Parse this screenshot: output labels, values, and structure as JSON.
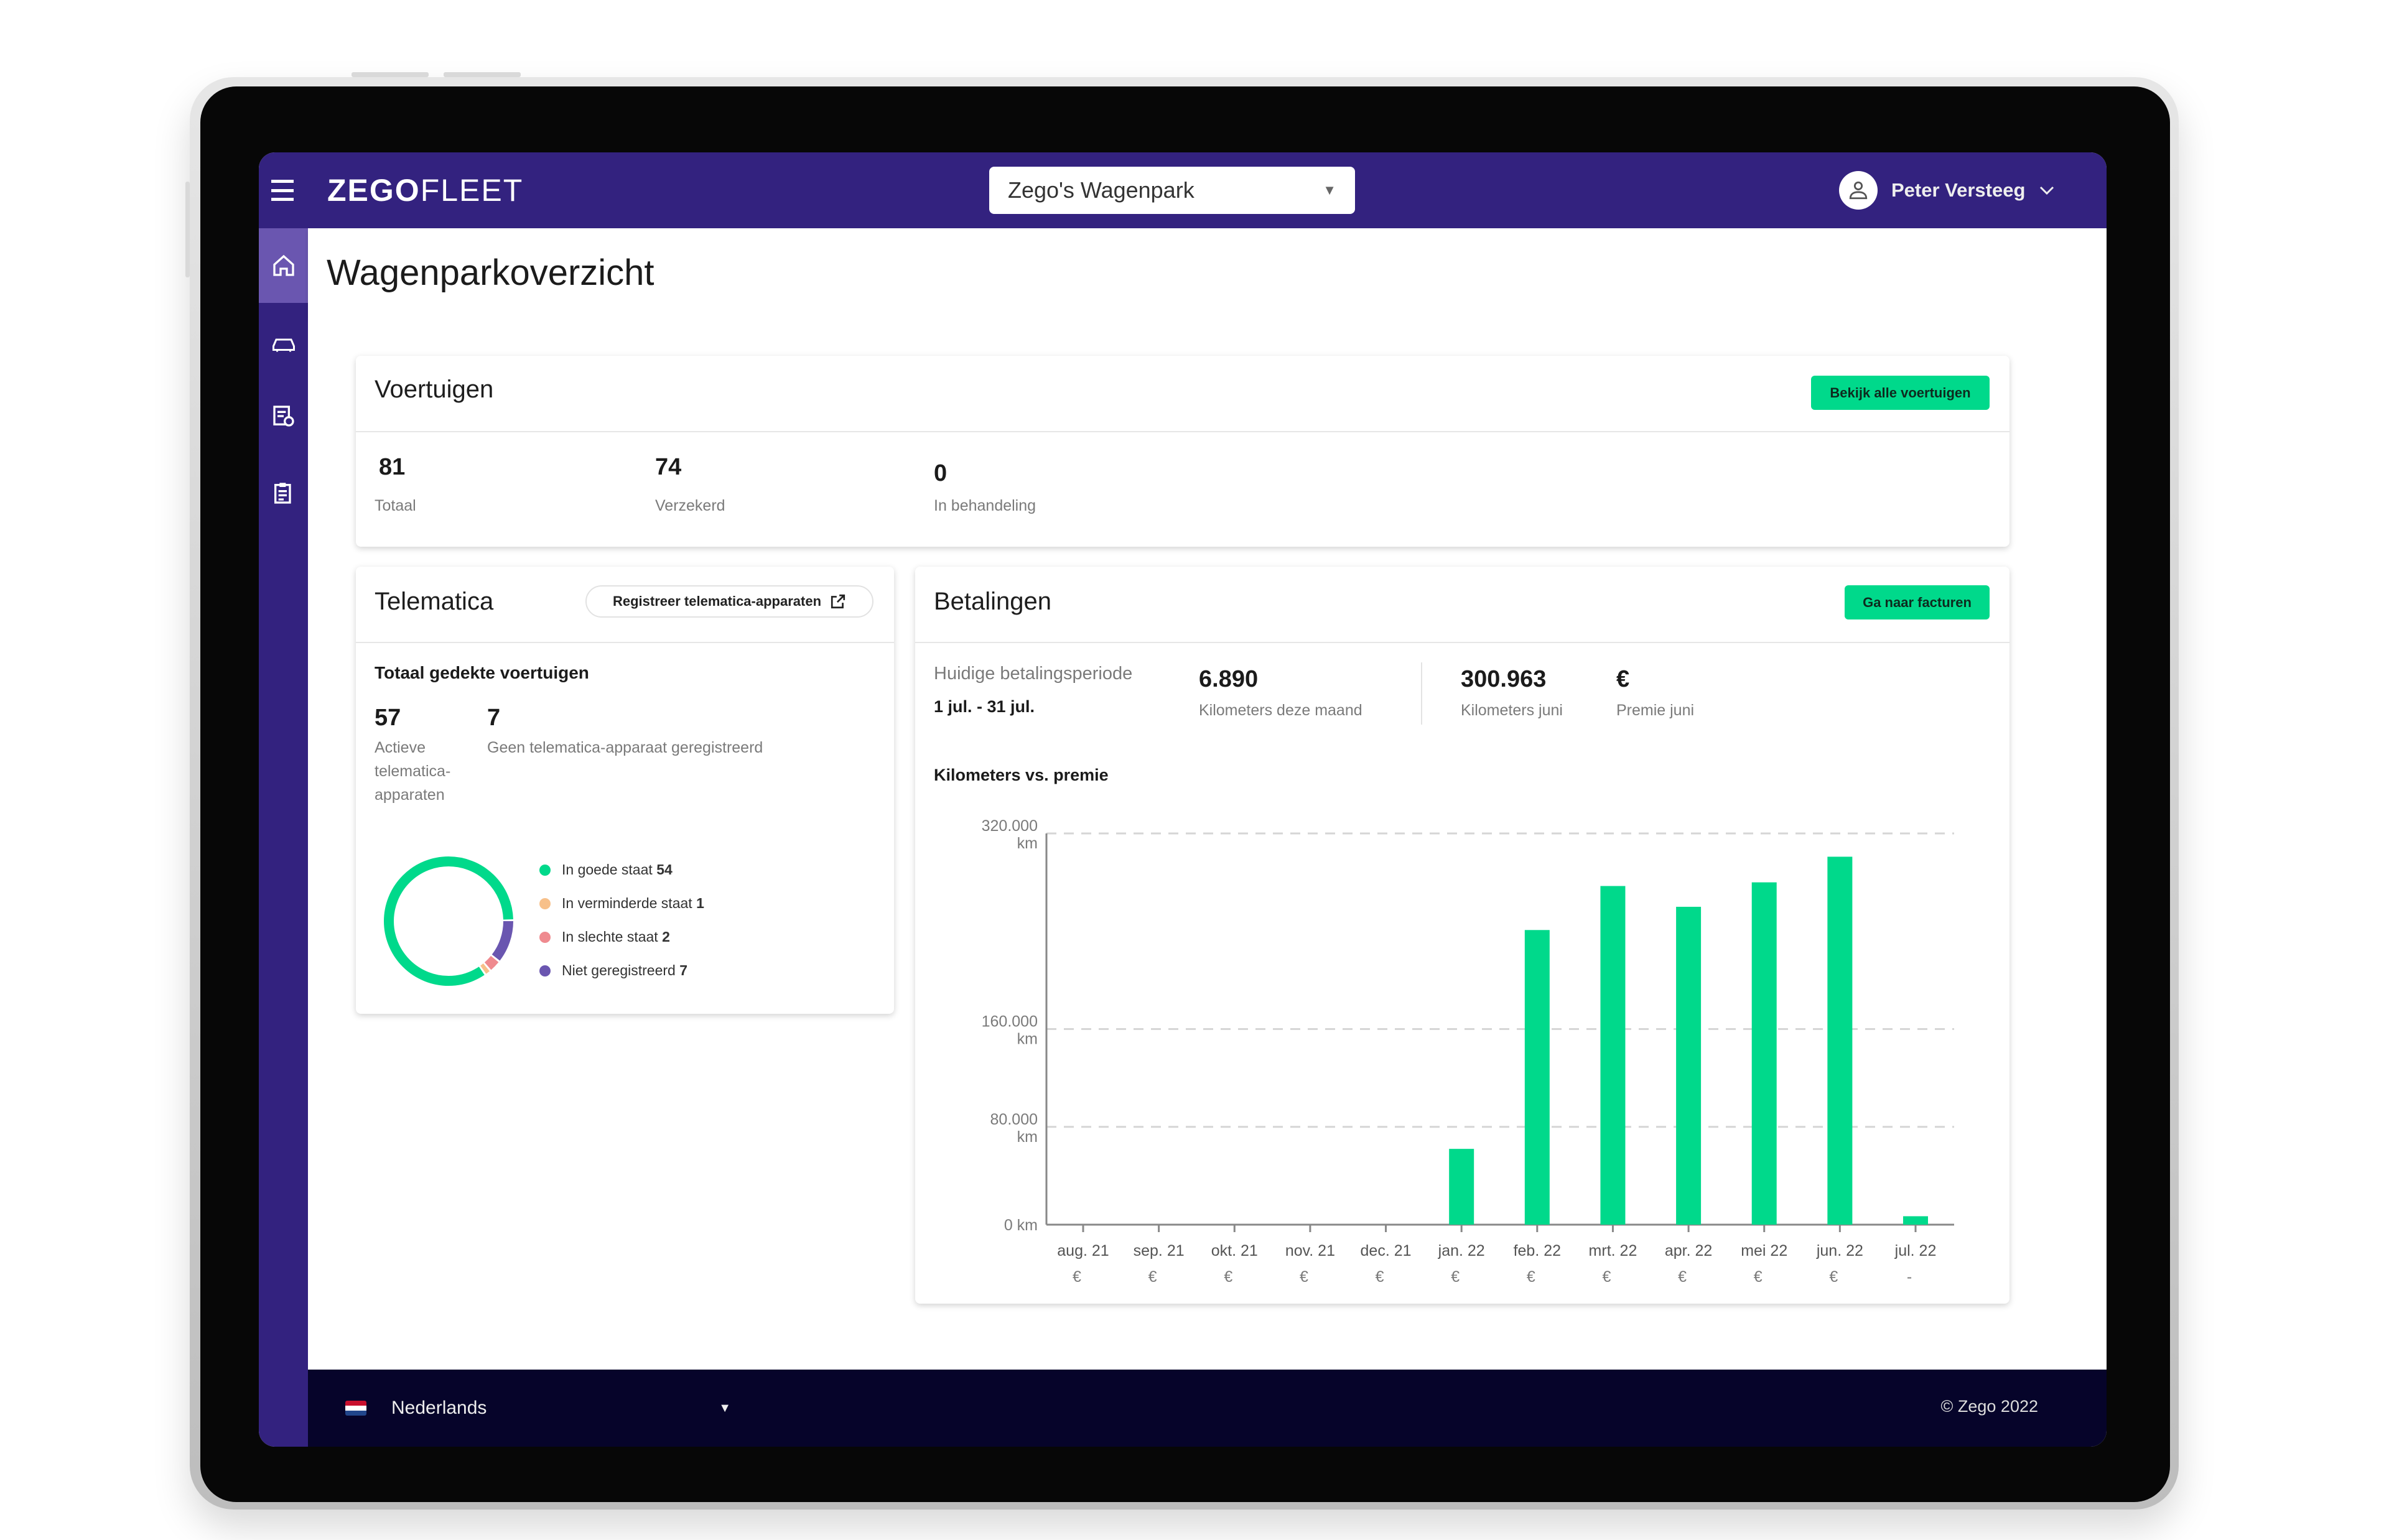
{
  "header": {
    "brand_bold": "ZEGO",
    "brand_light": "FLEET",
    "fleet_selector": "Zego's Wagenpark",
    "user_name": "Peter Versteeg"
  },
  "sidebar": {
    "items": [
      {
        "icon": "home-icon",
        "active": true
      },
      {
        "icon": "car-icon"
      },
      {
        "icon": "document-settings-icon"
      },
      {
        "icon": "clipboard-icon"
      }
    ]
  },
  "page": {
    "title": "Wagenparkoverzicht"
  },
  "vehicles": {
    "title": "Voertuigen",
    "button": "Bekijk alle voertuigen",
    "stats": [
      {
        "value": "81",
        "label": "Totaal"
      },
      {
        "value": "74",
        "label": "Verzekerd"
      },
      {
        "value": "0",
        "label": "In behandeling"
      }
    ]
  },
  "telematics": {
    "title": "Telematica",
    "button": "Registreer telematica-apparaten",
    "subtitle": "Totaal gedekte voertuigen",
    "active_value": "57",
    "active_label": "Actieve telematica-apparaten",
    "none_value": "7",
    "none_label": "Geen telematica-apparaat geregistreerd",
    "legend": [
      {
        "label": "In goede staat",
        "value": "54",
        "color": "#00d98b"
      },
      {
        "label": "In verminderde staat",
        "value": "1",
        "color": "#f7c08a"
      },
      {
        "label": "In slechte staat",
        "value": "2",
        "color": "#ef8a8f"
      },
      {
        "label": "Niet geregistreerd",
        "value": "7",
        "color": "#6a56b0"
      }
    ]
  },
  "payments": {
    "title": "Betalingen",
    "button": "Ga naar facturen",
    "period_label": "Huidige betalingsperiode",
    "period": "1 jul. - 31 jul.",
    "km_month": "6.890",
    "km_month_label": "Kilometers deze maand",
    "km_june": "300.963",
    "km_june_label": "Kilometers juni",
    "premium_june": "€",
    "premium_june_label": "Premie juni",
    "chart_title": "Kilometers vs. premie"
  },
  "chart_data": {
    "type": "bar",
    "title": "Kilometers vs. premie",
    "categories": [
      "aug. 21",
      "sep. 21",
      "okt. 21",
      "nov. 21",
      "dec. 21",
      "jan. 22",
      "feb. 22",
      "mrt. 22",
      "apr. 22",
      "mei 22",
      "jun. 22",
      "jul. 22"
    ],
    "premium_labels": [
      "€",
      "€",
      "€",
      "€",
      "€",
      "€",
      "€",
      "€",
      "€",
      "€",
      "€",
      "-"
    ],
    "values": [
      0,
      0,
      0,
      0,
      0,
      62000,
      241000,
      277000,
      260000,
      280000,
      300963,
      6890
    ],
    "ylim": [
      0,
      320000
    ],
    "yticks": [
      {
        "value": 0,
        "label": "0 km"
      },
      {
        "value": 80000,
        "label": "80.000 km"
      },
      {
        "value": 160000,
        "label": "160.000 km"
      },
      {
        "value": 320000,
        "label": "320.000 km"
      }
    ],
    "grid": true,
    "bar_color": "#00d98b"
  },
  "footer": {
    "language": "Nederlands",
    "copyright": "© Zego 2022"
  },
  "colors": {
    "primary": "#33227f",
    "accent": "#00d98b",
    "footer": "#06042a"
  }
}
